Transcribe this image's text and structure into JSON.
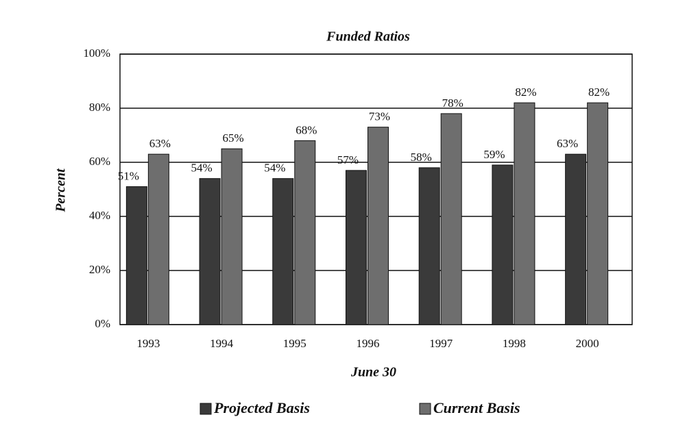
{
  "chart_data": {
    "type": "bar",
    "title": "Funded Ratios",
    "x_label": "June 30",
    "y_label": "Percent",
    "categories": [
      "1993",
      "1994",
      "1995",
      "1996",
      "1997",
      "1998",
      "2000"
    ],
    "series": [
      {
        "name": "Projected Basis",
        "color": "#3a3a3a",
        "values": [
          51,
          54,
          54,
          57,
          58,
          59,
          63
        ],
        "value_labels": [
          "51%",
          "54%",
          "54%",
          "57%",
          "58%",
          "59%",
          "63%"
        ]
      },
      {
        "name": "Current Basis",
        "color": "#6e6e6e",
        "values": [
          63,
          65,
          68,
          73,
          78,
          82,
          82
        ],
        "value_labels": [
          "63%",
          "65%",
          "68%",
          "73%",
          "78%",
          "82%",
          "82%"
        ]
      }
    ],
    "ylim": [
      0,
      100
    ],
    "yticks": [
      {
        "value": 0,
        "label": "0%"
      },
      {
        "value": 20,
        "label": "20%"
      },
      {
        "value": 40,
        "label": "40%"
      },
      {
        "value": 60,
        "label": "60%"
      },
      {
        "value": 80,
        "label": "80%"
      },
      {
        "value": 100,
        "label": "100%"
      }
    ],
    "grid": true
  }
}
